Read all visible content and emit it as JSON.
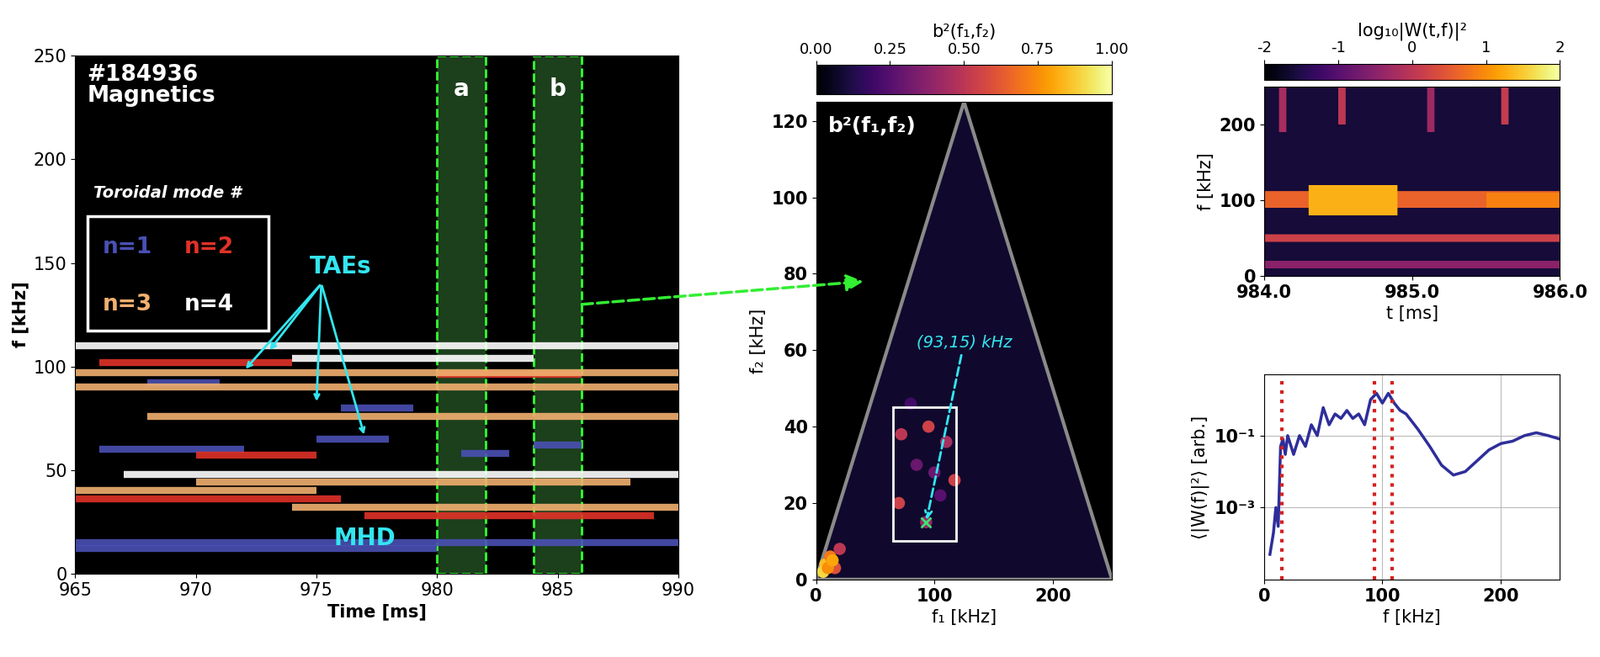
{
  "chart_data": [
    {
      "type": "spectrogram_modes",
      "title": "#184936\nMagnetics",
      "xlabel": "Time [ms]",
      "ylabel": "f [kHz]",
      "xlim": [
        965,
        990
      ],
      "xticks": [
        965,
        970,
        975,
        980,
        985,
        990
      ],
      "ylim": [
        0,
        250
      ],
      "yticks": [
        0,
        50,
        100,
        150,
        200,
        250
      ],
      "legend_title": "Toroidal mode #",
      "series": [
        {
          "name": "n=1",
          "color": "#4a50b4",
          "segments": [
            {
              "t": [
                965,
                990
              ],
              "f": 15
            },
            {
              "t": [
                965,
                980
              ],
              "f": 12
            },
            {
              "t": [
                966,
                972
              ],
              "f": 60
            },
            {
              "t": [
                975,
                978
              ],
              "f": 65
            },
            {
              "t": [
                981,
                983
              ],
              "f": 58
            },
            {
              "t": [
                984,
                986
              ],
              "f": 62
            },
            {
              "t": [
                968,
                971
              ],
              "f": 92
            },
            {
              "t": [
                976,
                979
              ],
              "f": 80
            }
          ]
        },
        {
          "name": "n=2",
          "color": "#e03228",
          "segments": [
            {
              "t": [
                965,
                976
              ],
              "f": 36
            },
            {
              "t": [
                977,
                989
              ],
              "f": 28
            },
            {
              "t": [
                966,
                974
              ],
              "f": 102
            },
            {
              "t": [
                980,
                986
              ],
              "f": 96
            },
            {
              "t": [
                970,
                975
              ],
              "f": 57
            }
          ]
        },
        {
          "name": "n=3",
          "color": "#f2b070",
          "segments": [
            {
              "t": [
                965,
                990
              ],
              "f": 97
            },
            {
              "t": [
                965,
                990
              ],
              "f": 90
            },
            {
              "t": [
                968,
                990
              ],
              "f": 76
            },
            {
              "t": [
                965,
                975
              ],
              "f": 40
            },
            {
              "t": [
                974,
                990
              ],
              "f": 32
            },
            {
              "t": [
                970,
                988
              ],
              "f": 44
            }
          ]
        },
        {
          "name": "n=4",
          "color": "#ffffff",
          "segments": [
            {
              "t": [
                965,
                990
              ],
              "f": 110
            },
            {
              "t": [
                967,
                990
              ],
              "f": 48
            },
            {
              "t": [
                974,
                984
              ],
              "f": 104
            }
          ]
        }
      ],
      "regions": [
        {
          "label": "a",
          "t": [
            980,
            982
          ]
        },
        {
          "label": "b",
          "t": [
            984,
            986
          ]
        }
      ],
      "annotations": [
        {
          "text": "TAEs",
          "x": 976,
          "y": 148,
          "targets": [
            [
              973,
              107
            ],
            [
              972,
              98
            ],
            [
              975,
              82
            ],
            [
              977,
              66
            ]
          ]
        },
        {
          "text": "MHD",
          "x": 977,
          "y": 17
        }
      ]
    },
    {
      "type": "bicoherence",
      "title": "b²(f₁,f₂)",
      "xlabel": "f₁ [kHz]",
      "ylabel": "f₂ [kHz]",
      "xlim": [
        0,
        250
      ],
      "xticks": [
        0,
        100,
        200
      ],
      "ylim": [
        0,
        125
      ],
      "yticks": [
        0,
        20,
        40,
        60,
        80,
        100,
        120
      ],
      "domain": [
        [
          0,
          0
        ],
        [
          125,
          125
        ],
        [
          250,
          0
        ]
      ],
      "colorbar_label": "b²(f₁,f₂)",
      "colorbar_range": [
        0,
        1
      ],
      "colorbar_ticks": [
        {
          "value": 0,
          "label": "0.00"
        },
        0.25,
        {
          "value": 0.5,
          "label": "0.50"
        },
        0.75,
        {
          "value": 1,
          "label": "1.00"
        }
      ],
      "peaks": {
        "f1": [
          72,
          95,
          110,
          70,
          117,
          93,
          85,
          100,
          80,
          105,
          8,
          12,
          16,
          20,
          6,
          10,
          14
        ],
        "f2": [
          38,
          40,
          36,
          20,
          26,
          15,
          30,
          28,
          46,
          22,
          4,
          6,
          3,
          8,
          2,
          3,
          5
        ],
        "b2": [
          0.5,
          0.55,
          0.45,
          0.55,
          0.55,
          0.4,
          0.3,
          0.3,
          0.2,
          0.25,
          0.85,
          0.7,
          0.6,
          0.5,
          0.9,
          0.75,
          0.8
        ]
      },
      "box": {
        "f1": [
          65,
          118
        ],
        "f2": [
          10,
          45
        ]
      },
      "marker_point": {
        "text": "(93,15) kHz",
        "f1": 93,
        "f2": 15
      }
    },
    {
      "type": "wavelet",
      "xlabel": "t [ms]",
      "ylabel": "f [kHz]",
      "xlim": [
        984,
        986
      ],
      "xticks": [
        {
          "value": 984,
          "label": "984.0"
        },
        {
          "value": 985,
          "label": "985.0"
        },
        {
          "value": 986,
          "label": "986.0"
        }
      ],
      "ylim": [
        0,
        250
      ],
      "yticks": [
        0,
        100,
        200
      ],
      "colorbar_label": "log₁₀|W(t,f)|²",
      "colorbar_range": [
        -2,
        2
      ],
      "colorbar_ticks": [
        -2,
        -1,
        0,
        1,
        2
      ],
      "background": -1.6,
      "bands": [
        {
          "t": [
            984,
            986
          ],
          "f": [
            90,
            112
          ],
          "level": 0.6
        },
        {
          "t": [
            984.3,
            984.9
          ],
          "f": [
            80,
            120
          ],
          "level": 1.3
        },
        {
          "t": [
            985.5,
            986
          ],
          "f": [
            90,
            110
          ],
          "level": 0.9
        },
        {
          "t": [
            984,
            986
          ],
          "f": [
            45,
            55
          ],
          "level": 0.2
        },
        {
          "t": [
            984,
            986
          ],
          "f": [
            10,
            20
          ],
          "level": -0.5
        },
        {
          "t": [
            984.1,
            984.15
          ],
          "f": [
            190,
            250
          ],
          "level": -0.2
        },
        {
          "t": [
            984.5,
            984.55
          ],
          "f": [
            200,
            250
          ],
          "level": 0.0
        },
        {
          "t": [
            985.1,
            985.15
          ],
          "f": [
            190,
            250
          ],
          "level": -0.3
        },
        {
          "t": [
            985.6,
            985.65
          ],
          "f": [
            200,
            250
          ],
          "level": 0.1
        }
      ]
    },
    {
      "type": "line",
      "log": "y",
      "grid": true,
      "xlabel": "f [kHz]",
      "ylabel": "⟨|W(f)|²⟩ [arb.]",
      "xlim": [
        0,
        250
      ],
      "xticks": [
        0,
        100,
        200
      ],
      "ylim": [
        1e-05,
        5
      ],
      "yticks": [
        {
          "value": 0.001,
          "label": "10⁻³"
        },
        {
          "value": 0.1,
          "label": "10⁻¹"
        }
      ],
      "color": "#2e2e9a",
      "x": [
        5,
        8,
        10,
        12,
        14,
        16,
        18,
        20,
        25,
        30,
        35,
        40,
        45,
        50,
        55,
        60,
        65,
        70,
        75,
        80,
        85,
        90,
        95,
        100,
        105,
        110,
        115,
        120,
        130,
        140,
        150,
        160,
        170,
        180,
        190,
        200,
        210,
        220,
        230,
        240,
        250
      ],
      "values": [
        5e-05,
        0.0002,
        0.001,
        0.0003,
        0.05,
        0.08,
        0.03,
        0.1,
        0.03,
        0.1,
        0.05,
        0.2,
        0.1,
        0.6,
        0.2,
        0.4,
        0.3,
        0.5,
        0.3,
        0.4,
        0.2,
        1.0,
        1.5,
        0.8,
        1.5,
        0.8,
        0.5,
        0.4,
        0.15,
        0.05,
        0.015,
        0.008,
        0.01,
        0.02,
        0.04,
        0.06,
        0.07,
        0.1,
        0.12,
        0.1,
        0.08
      ],
      "vlines": [
        15,
        93,
        108
      ],
      "vline_color": "#d42020"
    }
  ]
}
